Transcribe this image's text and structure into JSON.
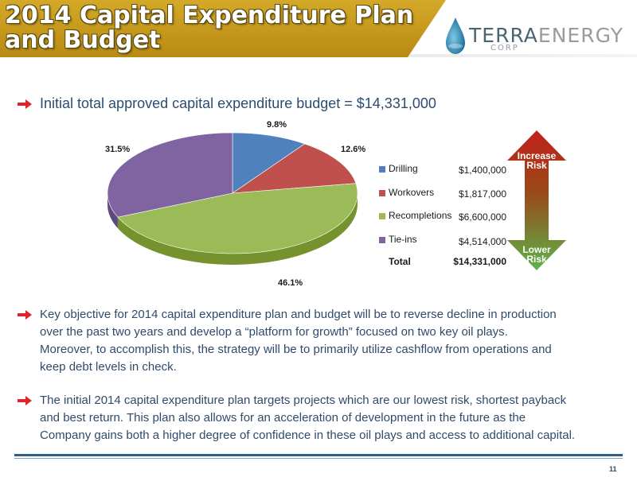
{
  "title": {
    "line1": "2014 Capital Expenditure Plan",
    "line2": "and Budget"
  },
  "logo": {
    "terra": "TERRA",
    "energy": "ENERGY",
    "corp": "CORP"
  },
  "colors": {
    "banner_gold": "#c49a1e",
    "text_blue": "#2f4b6b",
    "bullet_red": "#e0252a",
    "drilling": "#4f81bd",
    "workovers": "#c0504d",
    "recompletions": "#9bbb59",
    "tieins": "#8064a2"
  },
  "bullets": {
    "intro": "Initial total approved capital expenditure budget = $14,331,000",
    "p1": [
      "Key objective for 2014 capital expenditure plan and budget will be to reverse decline in production",
      "over the past two years and develop a “platform for growth” focused on two key oil plays.",
      "Moreover, to accomplish this, the strategy will be to primarily utilize cashflow from operations and",
      "keep debt levels in check."
    ],
    "p2": [
      "The initial 2014 capital expenditure plan targets projects which are our lowest risk, shortest payback",
      "and best return. This plan also allows for an acceleration of development in the future as the",
      "Company gains both a higher degree of confidence in these oil plays and access to additional capital."
    ]
  },
  "chart_data": {
    "type": "pie",
    "categories": [
      "Drilling",
      "Workovers",
      "Recompletions",
      "Tie-ins"
    ],
    "values": [
      9.8,
      12.6,
      46.1,
      31.5
    ],
    "labels": [
      "9.8%",
      "12.6%",
      "46.1%",
      "31.5%"
    ],
    "amounts": [
      "$1,400,000",
      "$1,817,000",
      "$6,600,000",
      "$4,514,000"
    ],
    "total_label": "Total",
    "total_amount": "$14,331,000",
    "legend_position": "right"
  },
  "risk": {
    "top": "Increase Risk",
    "bottom": "Lower Risk",
    "top_lines": [
      "Increase",
      "Risk"
    ],
    "bottom_lines": [
      "Lower",
      "Risk"
    ]
  },
  "page_number": "11"
}
